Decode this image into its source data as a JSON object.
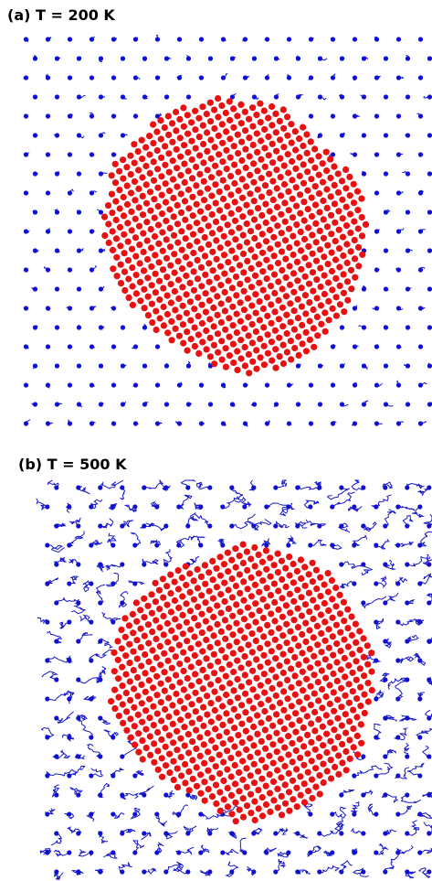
{
  "panels": [
    {
      "label": "(a) T = 200 K"
    },
    {
      "label": "(b) T = 500 K"
    }
  ]
}
